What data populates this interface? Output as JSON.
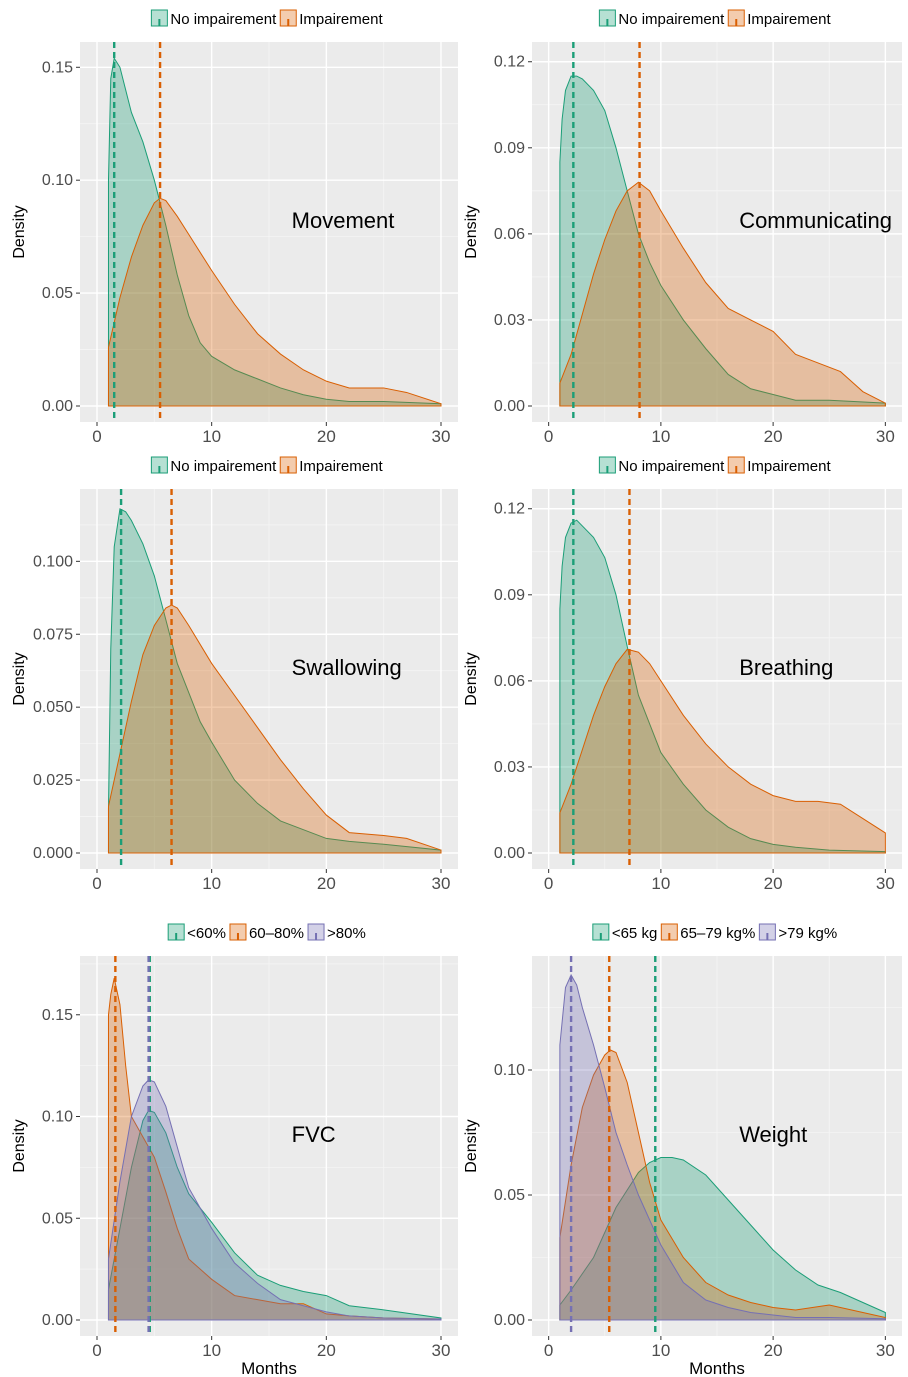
{
  "chart_data": [
    {
      "type": "area",
      "panel_label": "Movement",
      "xlabel": "",
      "ylabel": "Density",
      "xlim": [
        0,
        30
      ],
      "ylim": [
        0,
        0.155
      ],
      "xticks": [
        0,
        10,
        20,
        30
      ],
      "yticks": [
        0.0,
        0.05,
        0.1,
        0.15
      ],
      "ytick_labels": [
        "0.00",
        "0.05",
        "0.10",
        "0.15"
      ],
      "legend": [
        "No impairement",
        "Impairement"
      ],
      "legend_position": "top",
      "grid": true,
      "series": [
        {
          "name": "No impairement",
          "color": "#1b9e77",
          "mean": 1.5,
          "x": [
            1,
            1.2,
            1.5,
            2,
            2.5,
            3,
            4,
            5,
            6,
            7,
            8,
            9,
            10,
            12,
            14,
            16,
            18,
            20,
            22,
            25,
            30
          ],
          "y": [
            0.1,
            0.145,
            0.154,
            0.15,
            0.14,
            0.13,
            0.117,
            0.1,
            0.08,
            0.058,
            0.04,
            0.028,
            0.022,
            0.016,
            0.012,
            0.008,
            0.005,
            0.003,
            0.002,
            0.002,
            0.001
          ]
        },
        {
          "name": "Impairement",
          "color": "#d95f02",
          "mean": 5.5,
          "x": [
            1,
            2,
            3,
            4,
            5,
            5.5,
            6,
            7,
            8,
            10,
            12,
            14,
            16,
            18,
            20,
            22,
            25,
            27,
            30
          ],
          "y": [
            0.026,
            0.048,
            0.066,
            0.08,
            0.09,
            0.092,
            0.091,
            0.084,
            0.076,
            0.06,
            0.045,
            0.032,
            0.023,
            0.016,
            0.011,
            0.008,
            0.008,
            0.006,
            0.001
          ]
        }
      ]
    },
    {
      "type": "area",
      "panel_label": "Communicating",
      "xlabel": "",
      "ylabel": "Density",
      "xlim": [
        0,
        30
      ],
      "ylim": [
        0,
        0.122
      ],
      "xticks": [
        0,
        10,
        20,
        30
      ],
      "yticks": [
        0.0,
        0.03,
        0.06,
        0.09,
        0.12
      ],
      "ytick_labels": [
        "0.00",
        "0.03",
        "0.06",
        "0.09",
        "0.12"
      ],
      "legend": [
        "No impairement",
        "Impairement"
      ],
      "legend_position": "top",
      "grid": true,
      "series": [
        {
          "name": "No impairement",
          "color": "#1b9e77",
          "mean": 2.2,
          "x": [
            1,
            1.2,
            1.5,
            2,
            2.5,
            3,
            4,
            5,
            6,
            7,
            8,
            9,
            10,
            12,
            14,
            16,
            18,
            20,
            22,
            25,
            30
          ],
          "y": [
            0.085,
            0.1,
            0.11,
            0.115,
            0.115,
            0.114,
            0.11,
            0.103,
            0.09,
            0.075,
            0.06,
            0.05,
            0.042,
            0.03,
            0.02,
            0.011,
            0.006,
            0.004,
            0.002,
            0.002,
            0.001
          ]
        },
        {
          "name": "Impairement",
          "color": "#d95f02",
          "mean": 8.1,
          "x": [
            1,
            2,
            3,
            4,
            5,
            6,
            7,
            8,
            9,
            10,
            12,
            14,
            16,
            18,
            20,
            22,
            24,
            26,
            28,
            30
          ],
          "y": [
            0.008,
            0.018,
            0.032,
            0.046,
            0.058,
            0.068,
            0.075,
            0.078,
            0.075,
            0.068,
            0.055,
            0.043,
            0.034,
            0.03,
            0.026,
            0.018,
            0.015,
            0.012,
            0.005,
            0.001
          ]
        }
      ]
    },
    {
      "type": "area",
      "panel_label": "Swallowing",
      "xlabel": "",
      "ylabel": "Density",
      "xlim": [
        0,
        30
      ],
      "ylim": [
        0,
        0.12
      ],
      "xticks": [
        0,
        10,
        20,
        30
      ],
      "yticks": [
        0.0,
        0.025,
        0.05,
        0.075,
        0.1
      ],
      "ytick_labels": [
        "0.000",
        "0.025",
        "0.050",
        "0.075",
        "0.100"
      ],
      "legend": [
        "No impairement",
        "Impairement"
      ],
      "legend_position": "top",
      "grid": true,
      "series": [
        {
          "name": "No impairement",
          "color": "#1b9e77",
          "mean": 2.1,
          "x": [
            1,
            1.2,
            1.5,
            2,
            2.5,
            3,
            4,
            5,
            6,
            7,
            8,
            9,
            10,
            12,
            14,
            16,
            18,
            20,
            22,
            25,
            30
          ],
          "y": [
            0.015,
            0.07,
            0.105,
            0.118,
            0.117,
            0.114,
            0.106,
            0.095,
            0.08,
            0.065,
            0.055,
            0.045,
            0.038,
            0.025,
            0.017,
            0.011,
            0.008,
            0.005,
            0.004,
            0.003,
            0.001
          ]
        },
        {
          "name": "Impairement",
          "color": "#d95f02",
          "mean": 6.5,
          "x": [
            1,
            2,
            3,
            4,
            5,
            6,
            6.5,
            7,
            8,
            10,
            12,
            14,
            16,
            18,
            20,
            22,
            25,
            27,
            30
          ],
          "y": [
            0.016,
            0.034,
            0.052,
            0.068,
            0.078,
            0.084,
            0.085,
            0.084,
            0.078,
            0.065,
            0.054,
            0.043,
            0.032,
            0.022,
            0.013,
            0.007,
            0.006,
            0.005,
            0.001
          ]
        }
      ]
    },
    {
      "type": "area",
      "panel_label": "Breathing",
      "xlabel": "",
      "ylabel": "Density",
      "xlim": [
        0,
        30
      ],
      "ylim": [
        0,
        0.122
      ],
      "xticks": [
        0,
        10,
        20,
        30
      ],
      "yticks": [
        0.0,
        0.03,
        0.06,
        0.09,
        0.12
      ],
      "ytick_labels": [
        "0.00",
        "0.03",
        "0.06",
        "0.09",
        "0.12"
      ],
      "legend": [
        "No impairement",
        "Impairement"
      ],
      "legend_position": "top",
      "grid": true,
      "series": [
        {
          "name": "No impairement",
          "color": "#1b9e77",
          "mean": 2.2,
          "x": [
            1,
            1.2,
            1.5,
            2,
            2.5,
            3,
            4,
            5,
            6,
            7,
            8,
            9,
            10,
            12,
            14,
            16,
            18,
            20,
            22,
            25,
            30
          ],
          "y": [
            0.085,
            0.1,
            0.11,
            0.115,
            0.116,
            0.114,
            0.11,
            0.103,
            0.09,
            0.072,
            0.055,
            0.045,
            0.035,
            0.024,
            0.015,
            0.009,
            0.005,
            0.003,
            0.002,
            0.001,
            0.0005
          ]
        },
        {
          "name": "Impairement",
          "color": "#d95f02",
          "mean": 7.2,
          "x": [
            1,
            2,
            3,
            4,
            5,
            6,
            7,
            8,
            9,
            10,
            12,
            14,
            16,
            18,
            20,
            22,
            24,
            26,
            28,
            30
          ],
          "y": [
            0.014,
            0.024,
            0.036,
            0.048,
            0.058,
            0.066,
            0.071,
            0.07,
            0.066,
            0.06,
            0.048,
            0.038,
            0.03,
            0.024,
            0.02,
            0.018,
            0.018,
            0.017,
            0.012,
            0.007
          ]
        }
      ]
    },
    {
      "type": "area",
      "panel_label": "FVC",
      "xlabel": "Months",
      "ylabel": "Density",
      "xlim": [
        0,
        30
      ],
      "ylim": [
        0,
        0.172
      ],
      "xticks": [
        0,
        10,
        20,
        30
      ],
      "yticks": [
        0.0,
        0.05,
        0.1,
        0.15
      ],
      "ytick_labels": [
        "0.00",
        "0.05",
        "0.10",
        "0.15"
      ],
      "legend": [
        "<60%",
        "60–80%",
        ">80%"
      ],
      "legend_position": "top",
      "grid": true,
      "series": [
        {
          "name": "<60%",
          "color": "#1b9e77",
          "mean": 4.6,
          "x": [
            1,
            2,
            3,
            4,
            4.5,
            5,
            6,
            7,
            8,
            10,
            12,
            14,
            16,
            18,
            20,
            22,
            25,
            30
          ],
          "y": [
            0.015,
            0.045,
            0.075,
            0.098,
            0.103,
            0.102,
            0.092,
            0.075,
            0.062,
            0.048,
            0.033,
            0.022,
            0.017,
            0.014,
            0.012,
            0.007,
            0.005,
            0.001
          ]
        },
        {
          "name": "60–80%",
          "color": "#d95f02",
          "mean": 1.6,
          "x": [
            1,
            1.2,
            1.5,
            2,
            2.5,
            3,
            4,
            5,
            6,
            7,
            8,
            10,
            12,
            14,
            16,
            18,
            20,
            22,
            25,
            30
          ],
          "y": [
            0.15,
            0.16,
            0.168,
            0.155,
            0.125,
            0.1,
            0.09,
            0.08,
            0.063,
            0.045,
            0.03,
            0.02,
            0.012,
            0.01,
            0.008,
            0.008,
            0.003,
            0.002,
            0.001,
            0.0005
          ]
        },
        {
          "name": ">80%",
          "color": "#7570b3",
          "mean": 4.5,
          "x": [
            1,
            2,
            3,
            4,
            4.5,
            5,
            6,
            7,
            8,
            10,
            12,
            14,
            16,
            18,
            20,
            22,
            25,
            30
          ],
          "y": [
            0.03,
            0.068,
            0.1,
            0.115,
            0.118,
            0.117,
            0.105,
            0.085,
            0.065,
            0.045,
            0.028,
            0.018,
            0.01,
            0.007,
            0.004,
            0.002,
            0.001,
            0.0005
          ]
        }
      ]
    },
    {
      "type": "area",
      "panel_label": "Weight",
      "xlabel": "Months",
      "ylabel": "Density",
      "xlim": [
        0,
        30
      ],
      "ylim": [
        0,
        0.14
      ],
      "xticks": [
        0,
        10,
        20,
        30
      ],
      "yticks": [
        0.0,
        0.05,
        0.1
      ],
      "ytick_labels": [
        "0.00",
        "0.05",
        "0.10"
      ],
      "legend": [
        "<65 kg",
        "65–79 kg%",
        ">79 kg%"
      ],
      "legend_position": "top",
      "grid": true,
      "series": [
        {
          "name": "<65 kg",
          "color": "#1b9e77",
          "mean": 9.5,
          "x": [
            1,
            2,
            4,
            6,
            8,
            9,
            10,
            11,
            12,
            14,
            16,
            18,
            20,
            22,
            24,
            26,
            28,
            30
          ],
          "y": [
            0.006,
            0.012,
            0.025,
            0.045,
            0.059,
            0.063,
            0.065,
            0.065,
            0.064,
            0.058,
            0.048,
            0.038,
            0.028,
            0.02,
            0.014,
            0.011,
            0.007,
            0.003
          ]
        },
        {
          "name": "65–79 kg%",
          "color": "#d95f02",
          "mean": 5.4,
          "x": [
            1,
            2,
            3,
            4,
            5,
            5.5,
            6,
            7,
            8,
            9,
            10,
            12,
            14,
            16,
            18,
            20,
            22,
            25,
            27,
            30
          ],
          "y": [
            0.033,
            0.062,
            0.085,
            0.098,
            0.106,
            0.108,
            0.107,
            0.095,
            0.075,
            0.055,
            0.04,
            0.025,
            0.015,
            0.01,
            0.007,
            0.005,
            0.004,
            0.006,
            0.004,
            0.001
          ]
        },
        {
          "name": ">79 kg%",
          "color": "#7570b3",
          "mean": 2.0,
          "x": [
            1,
            1.5,
            2,
            2.5,
            3,
            4,
            5,
            6,
            7,
            8,
            9,
            10,
            12,
            14,
            16,
            18,
            20,
            22,
            25,
            30
          ],
          "y": [
            0.11,
            0.133,
            0.138,
            0.134,
            0.125,
            0.11,
            0.093,
            0.075,
            0.062,
            0.05,
            0.04,
            0.03,
            0.015,
            0.008,
            0.005,
            0.003,
            0.002,
            0.001,
            0.001,
            0.0005
          ]
        }
      ]
    }
  ]
}
